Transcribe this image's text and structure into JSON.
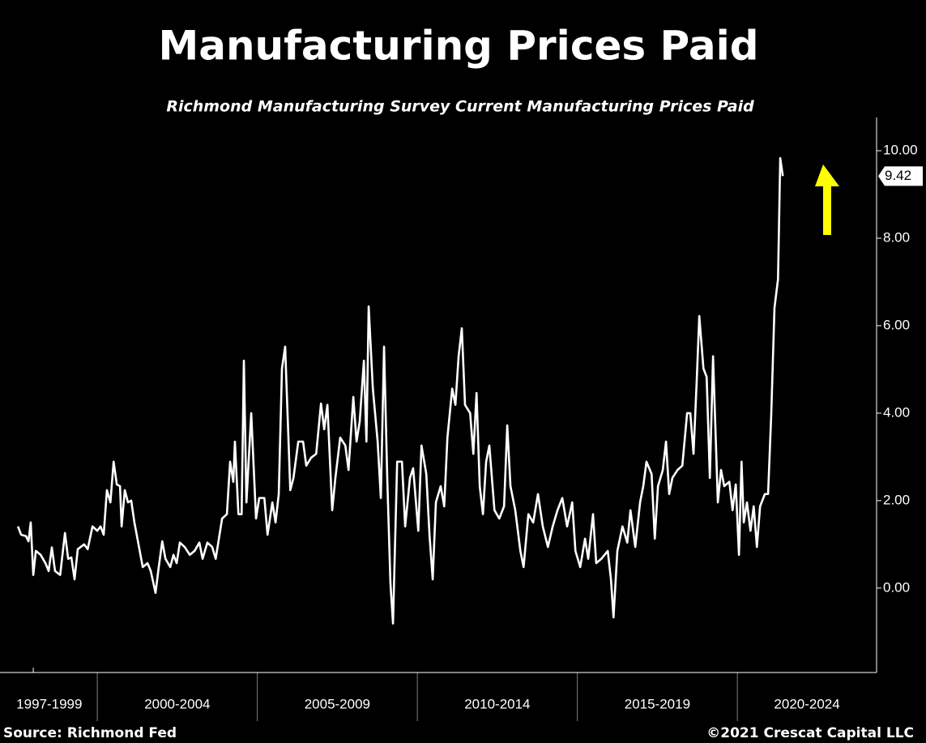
{
  "chart_data": {
    "type": "line",
    "title": "Manufacturing Prices Paid",
    "subtitle": "Richmond Manufacturing Survey Current Manufacturing Prices Paid",
    "source": "Source: Richmond Fed",
    "credit": "©2021 Crescat Capital LLC",
    "color": "#ffffff",
    "background": "#000000",
    "axis_color": "#ffffff",
    "arrow_color": "#ffff00",
    "xlim": [
      1996.96,
      2024.35
    ],
    "ylim": [
      -1.93,
      10.76
    ],
    "yticks": [
      {
        "value": 0,
        "label": "0.00"
      },
      {
        "value": 2,
        "label": "2.00"
      },
      {
        "value": 4,
        "label": "4.00"
      },
      {
        "value": 6,
        "label": "6.00"
      },
      {
        "value": 8,
        "label": "8.00"
      },
      {
        "value": 10,
        "label": "10.00"
      }
    ],
    "xticks": [
      1998,
      2000,
      2005,
      2010,
      2015,
      2020
    ],
    "x_periods": [
      {
        "label": "1997-1999",
        "start": 1997,
        "end": 2000
      },
      {
        "label": "2000-2004",
        "start": 2000,
        "end": 2005
      },
      {
        "label": "2005-2009",
        "start": 2005,
        "end": 2010
      },
      {
        "label": "2010-2014",
        "start": 2010,
        "end": 2015
      },
      {
        "label": "2015-2019",
        "start": 2015,
        "end": 2020
      },
      {
        "label": "2020-2024",
        "start": 2020,
        "end": 2024.35
      }
    ],
    "x": [
      1997.52,
      1997.62,
      1997.77,
      1997.85,
      1997.92,
      1998.0,
      1998.08,
      1998.23,
      1998.38,
      1998.48,
      1998.58,
      1998.68,
      1998.84,
      1998.99,
      1999.09,
      1999.19,
      1999.29,
      1999.39,
      1999.59,
      1999.7,
      1999.85,
      2000.0,
      2000.1,
      2000.2,
      2000.3,
      2000.41,
      2000.51,
      2000.61,
      2000.71,
      2000.76,
      2000.86,
      2000.96,
      2001.06,
      2001.16,
      2001.27,
      2001.42,
      2001.57,
      2001.67,
      2001.82,
      2001.92,
      2002.03,
      2002.13,
      2002.28,
      2002.38,
      2002.48,
      2002.58,
      2002.73,
      2002.89,
      2003.04,
      2003.19,
      2003.29,
      2003.44,
      2003.59,
      2003.7,
      2003.8,
      2003.9,
      2004.05,
      2004.15,
      2004.25,
      2004.3,
      2004.41,
      2004.51,
      2004.58,
      2004.66,
      2004.81,
      2004.96,
      2005.06,
      2005.22,
      2005.32,
      2005.47,
      2005.57,
      2005.67,
      2005.77,
      2005.87,
      2006.03,
      2006.13,
      2006.28,
      2006.43,
      2006.53,
      2006.68,
      2006.84,
      2006.99,
      2007.09,
      2007.19,
      2007.34,
      2007.44,
      2007.59,
      2007.75,
      2007.85,
      2008.0,
      2008.1,
      2008.2,
      2008.33,
      2008.41,
      2008.48,
      2008.61,
      2008.76,
      2008.86,
      2008.96,
      2009.06,
      2009.16,
      2009.24,
      2009.37,
      2009.52,
      2009.62,
      2009.77,
      2009.87,
      2010.03,
      2010.13,
      2010.28,
      2010.38,
      2010.48,
      2010.58,
      2010.73,
      2010.84,
      2010.94,
      2011.09,
      2011.19,
      2011.29,
      2011.39,
      2011.49,
      2011.65,
      2011.75,
      2011.85,
      2011.95,
      2012.05,
      2012.15,
      2012.25,
      2012.41,
      2012.56,
      2012.71,
      2012.81,
      2012.91,
      2013.06,
      2013.22,
      2013.32,
      2013.47,
      2013.62,
      2013.77,
      2013.92,
      2014.08,
      2014.23,
      2014.38,
      2014.53,
      2014.68,
      2014.84,
      2014.94,
      2015.09,
      2015.24,
      2015.34,
      2015.49,
      2015.59,
      2015.75,
      2015.85,
      2015.95,
      2016.05,
      2016.13,
      2016.25,
      2016.41,
      2016.56,
      2016.66,
      2016.81,
      2016.96,
      2017.06,
      2017.16,
      2017.32,
      2017.42,
      2017.52,
      2017.67,
      2017.77,
      2017.87,
      2017.97,
      2018.13,
      2018.28,
      2018.43,
      2018.53,
      2018.63,
      2018.73,
      2018.81,
      2018.94,
      2019.04,
      2019.14,
      2019.24,
      2019.39,
      2019.49,
      2019.59,
      2019.75,
      2019.85,
      2019.95,
      2020.05,
      2020.13,
      2020.2,
      2020.3,
      2020.41,
      2020.51,
      2020.61,
      2020.71,
      2020.86,
      2020.96,
      2021.06,
      2021.16,
      2021.27,
      2021.34,
      2021.42
    ],
    "values": [
      1.41,
      1.22,
      1.19,
      1.07,
      1.5,
      0.3,
      0.85,
      0.76,
      0.57,
      0.39,
      0.93,
      0.39,
      0.3,
      1.26,
      0.67,
      0.7,
      0.2,
      0.89,
      1.0,
      0.89,
      1.41,
      1.31,
      1.41,
      1.22,
      2.24,
      1.96,
      2.89,
      2.37,
      2.33,
      1.41,
      2.24,
      1.96,
      2.0,
      1.5,
      1.07,
      0.48,
      0.57,
      0.39,
      -0.11,
      0.48,
      1.07,
      0.67,
      0.48,
      0.76,
      0.57,
      1.04,
      0.94,
      0.76,
      0.85,
      1.04,
      0.67,
      1.04,
      0.94,
      0.67,
      1.13,
      1.59,
      1.69,
      2.89,
      2.43,
      3.35,
      1.69,
      1.69,
      5.2,
      1.96,
      4.0,
      1.59,
      2.06,
      2.06,
      1.22,
      1.96,
      1.5,
      2.15,
      5.02,
      5.52,
      2.24,
      2.52,
      3.35,
      3.35,
      2.8,
      2.98,
      3.07,
      4.22,
      3.63,
      4.19,
      1.78,
      2.52,
      3.44,
      3.26,
      2.7,
      4.37,
      3.35,
      3.81,
      5.2,
      3.35,
      6.44,
      4.56,
      3.35,
      2.06,
      5.52,
      2.52,
      0.11,
      -0.81,
      2.89,
      2.89,
      1.41,
      2.52,
      2.74,
      1.31,
      3.26,
      2.61,
      1.22,
      0.2,
      1.96,
      2.33,
      1.87,
      3.44,
      4.56,
      4.19,
      5.3,
      5.94,
      4.19,
      4.0,
      3.07,
      4.46,
      2.33,
      1.69,
      2.89,
      3.26,
      1.78,
      1.59,
      1.87,
      3.72,
      2.33,
      1.78,
      0.85,
      0.48,
      1.69,
      1.5,
      2.15,
      1.41,
      0.94,
      1.41,
      1.78,
      2.06,
      1.41,
      1.96,
      0.85,
      0.48,
      1.13,
      0.67,
      1.69,
      0.57,
      0.67,
      0.76,
      0.85,
      0.2,
      -0.67,
      0.85,
      1.41,
      1.04,
      1.78,
      0.94,
      1.96,
      2.33,
      2.89,
      2.61,
      1.13,
      2.33,
      2.7,
      3.35,
      2.15,
      2.52,
      2.7,
      2.8,
      4.0,
      4.0,
      3.07,
      4.74,
      6.22,
      5.02,
      4.83,
      2.52,
      5.3,
      1.96,
      2.7,
      2.33,
      2.43,
      1.78,
      2.37,
      0.76,
      2.89,
      1.5,
      1.96,
      1.31,
      1.87,
      0.94,
      1.87,
      2.15,
      2.15,
      4.0,
      6.41,
      7.06,
      9.83,
      9.42
    ]
  }
}
